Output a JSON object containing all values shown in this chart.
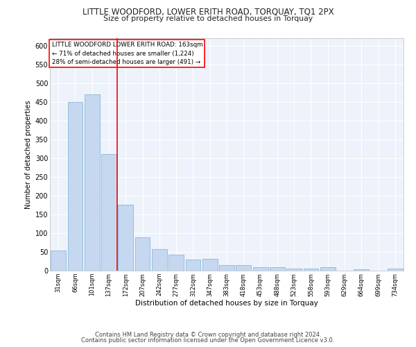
{
  "title": "LITTLE WOODFORD, LOWER ERITH ROAD, TORQUAY, TQ1 2PX",
  "subtitle": "Size of property relative to detached houses in Torquay",
  "xlabel": "Distribution of detached houses by size in Torquay",
  "ylabel": "Number of detached properties",
  "categories": [
    "31sqm",
    "66sqm",
    "101sqm",
    "137sqm",
    "172sqm",
    "207sqm",
    "242sqm",
    "277sqm",
    "312sqm",
    "347sqm",
    "383sqm",
    "418sqm",
    "453sqm",
    "488sqm",
    "523sqm",
    "558sqm",
    "593sqm",
    "629sqm",
    "664sqm",
    "699sqm",
    "734sqm"
  ],
  "values": [
    54,
    450,
    471,
    311,
    176,
    88,
    58,
    43,
    30,
    31,
    15,
    15,
    10,
    10,
    6,
    6,
    9,
    0,
    4,
    0,
    5
  ],
  "bar_color": "#c5d8f0",
  "bar_edge_color": "#7aaed6",
  "redline_x": 3.5,
  "annotation_title": "LITTLE WOODFORD LOWER ERITH ROAD: 163sqm",
  "annotation_line1": "← 71% of detached houses are smaller (1,224)",
  "annotation_line2": "28% of semi-detached houses are larger (491) →",
  "ylim": [
    0,
    620
  ],
  "yticks": [
    0,
    50,
    100,
    150,
    200,
    250,
    300,
    350,
    400,
    450,
    500,
    550,
    600
  ],
  "background_color": "#eef2fa",
  "grid_color": "#ffffff",
  "footer1": "Contains HM Land Registry data © Crown copyright and database right 2024.",
  "footer2": "Contains public sector information licensed under the Open Government Licence v3.0."
}
